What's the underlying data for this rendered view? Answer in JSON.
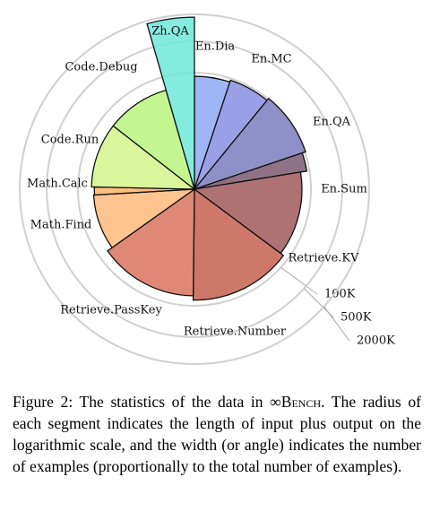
{
  "chart_data": {
    "type": "polar-area",
    "categories": [
      "En.Dia",
      "En.MC",
      "En.QA",
      "En.Sum",
      "Retrieve.KV",
      "Retrieve.Number",
      "Retrieve.PassKey",
      "Math.Find",
      "Math.Calc",
      "Code.Run",
      "Code.Debug",
      "Zh.QA"
    ],
    "counts": [
      200,
      229,
      351,
      103,
      500,
      590,
      590,
      350,
      50,
      400,
      394,
      175
    ],
    "lengths": [
      83000,
      91000,
      104000,
      87000,
      63000,
      75000,
      60000,
      45000,
      43000,
      50000,
      50000,
      1730000
    ],
    "colors": [
      "#8fa8f2",
      "#8a8fe2",
      "#7d7cc0",
      "#7a5a72",
      "#a0585c",
      "#c5604f",
      "#d9735d",
      "#fdba7c",
      "#fdb466",
      "#d4f58c",
      "#b8f47c",
      "#6fe8d9"
    ],
    "log_scale": true,
    "rlim": [
      250,
      2000000
    ],
    "rticks": [
      {
        "value": 100000,
        "label": "100K"
      },
      {
        "value": 500000,
        "label": "500K"
      },
      {
        "value": 2000000,
        "label": "2000K"
      }
    ]
  },
  "caption": {
    "prefix": "Figure 2: The statistics of the data in ",
    "name": "∞Bench",
    "suffix": ". The radius of each segment indicates the length of input plus output on the logarithmic scale, and the width (or angle) indicates the number of examples (proportionally to the total number of examples)."
  }
}
